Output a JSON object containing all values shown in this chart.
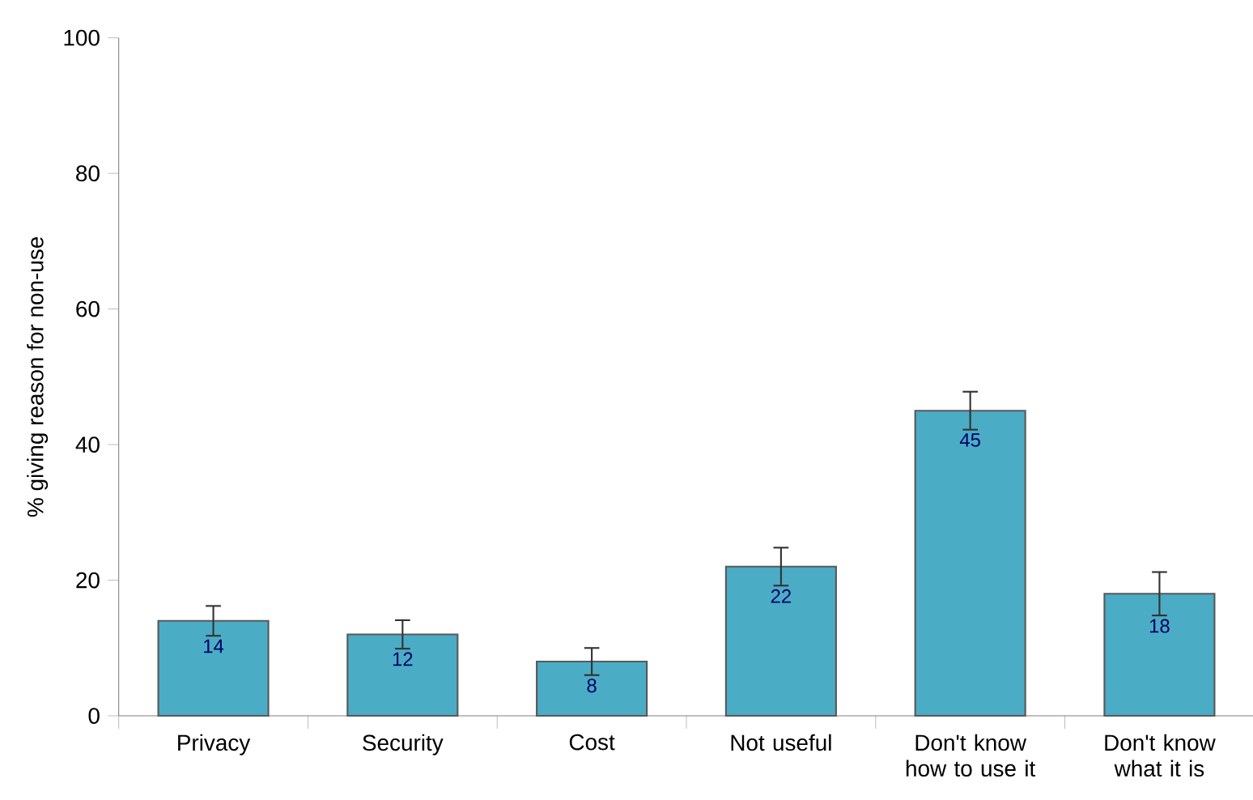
{
  "chart_data": {
    "type": "bar",
    "ylabel": "% giving reason for non-use",
    "categories": [
      "Privacy",
      "Security",
      "Cost",
      "Not useful",
      "Don't know how to use it",
      "Don't know what it is"
    ],
    "values": [
      14,
      12,
      8,
      22,
      45,
      18
    ],
    "errors": [
      2.2,
      2.1,
      2,
      2.8,
      2.8,
      3.2
    ],
    "color": "#4bacc6",
    "ylim": [
      0,
      100
    ],
    "yticks": [
      0,
      20,
      40,
      60,
      80,
      100
    ],
    "data_labels": true
  }
}
